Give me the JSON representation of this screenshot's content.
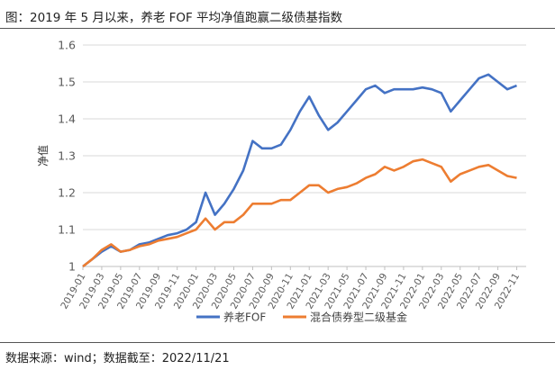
{
  "figure": {
    "title": "图：2019 年 5 月以来，养老 FOF 平均净值跑赢二级债基指数",
    "source": "数据来源：wind；数据截至：2022/11/21"
  },
  "chart_data": {
    "type": "line",
    "ylabel": "净值",
    "xlabel": "",
    "ylim": [
      1,
      1.6
    ],
    "y_ticks": [
      1,
      1.1,
      1.2,
      1.3,
      1.4,
      1.5,
      1.6
    ],
    "x_range": [
      "2019-01",
      "2022-12"
    ],
    "x_ticks": [
      "2019-01",
      "2019-03",
      "2019-05",
      "2019-07",
      "2019-09",
      "2019-11",
      "2020-01",
      "2020-03",
      "2020-05",
      "2020-07",
      "2020-09",
      "2020-11",
      "2021-01",
      "2021-03",
      "2021-05",
      "2021-07",
      "2021-09",
      "2021-11",
      "2022-01",
      "2022-03",
      "2022-05",
      "2022-07",
      "2022-09",
      "2022-11"
    ],
    "grid": "horizontal",
    "legend_position": "bottom",
    "series": [
      {
        "name": "养老FOF",
        "color": "#4472C4",
        "points": [
          [
            "2019-01",
            1.0
          ],
          [
            "2019-02",
            1.02
          ],
          [
            "2019-03",
            1.04
          ],
          [
            "2019-04",
            1.055
          ],
          [
            "2019-05",
            1.04
          ],
          [
            "2019-06",
            1.045
          ],
          [
            "2019-07",
            1.06
          ],
          [
            "2019-08",
            1.065
          ],
          [
            "2019-09",
            1.075
          ],
          [
            "2019-10",
            1.085
          ],
          [
            "2019-11",
            1.09
          ],
          [
            "2019-12",
            1.1
          ],
          [
            "2020-01",
            1.12
          ],
          [
            "2020-02",
            1.2
          ],
          [
            "2020-03",
            1.14
          ],
          [
            "2020-04",
            1.17
          ],
          [
            "2020-05",
            1.21
          ],
          [
            "2020-06",
            1.26
          ],
          [
            "2020-07",
            1.34
          ],
          [
            "2020-08",
            1.32
          ],
          [
            "2020-09",
            1.32
          ],
          [
            "2020-10",
            1.33
          ],
          [
            "2020-11",
            1.37
          ],
          [
            "2020-12",
            1.42
          ],
          [
            "2021-01",
            1.46
          ],
          [
            "2021-02",
            1.41
          ],
          [
            "2021-03",
            1.37
          ],
          [
            "2021-04",
            1.39
          ],
          [
            "2021-05",
            1.42
          ],
          [
            "2021-06",
            1.45
          ],
          [
            "2021-07",
            1.48
          ],
          [
            "2021-08",
            1.49
          ],
          [
            "2021-09",
            1.47
          ],
          [
            "2021-10",
            1.48
          ],
          [
            "2021-11",
            1.48
          ],
          [
            "2021-12",
            1.48
          ],
          [
            "2022-01",
            1.485
          ],
          [
            "2022-02",
            1.48
          ],
          [
            "2022-03",
            1.47
          ],
          [
            "2022-04",
            1.42
          ],
          [
            "2022-05",
            1.45
          ],
          [
            "2022-06",
            1.48
          ],
          [
            "2022-07",
            1.51
          ],
          [
            "2022-08",
            1.52
          ],
          [
            "2022-09",
            1.5
          ],
          [
            "2022-10",
            1.48
          ],
          [
            "2022-11",
            1.49
          ]
        ]
      },
      {
        "name": "混合债券型二级基金",
        "color": "#ED7D31",
        "points": [
          [
            "2019-01",
            1.0
          ],
          [
            "2019-02",
            1.02
          ],
          [
            "2019-03",
            1.045
          ],
          [
            "2019-04",
            1.06
          ],
          [
            "2019-05",
            1.04
          ],
          [
            "2019-06",
            1.045
          ],
          [
            "2019-07",
            1.055
          ],
          [
            "2019-08",
            1.06
          ],
          [
            "2019-09",
            1.07
          ],
          [
            "2019-10",
            1.075
          ],
          [
            "2019-11",
            1.08
          ],
          [
            "2019-12",
            1.09
          ],
          [
            "2020-01",
            1.1
          ],
          [
            "2020-02",
            1.13
          ],
          [
            "2020-03",
            1.1
          ],
          [
            "2020-04",
            1.12
          ],
          [
            "2020-05",
            1.12
          ],
          [
            "2020-06",
            1.14
          ],
          [
            "2020-07",
            1.17
          ],
          [
            "2020-08",
            1.17
          ],
          [
            "2020-09",
            1.17
          ],
          [
            "2020-10",
            1.18
          ],
          [
            "2020-11",
            1.18
          ],
          [
            "2020-12",
            1.2
          ],
          [
            "2021-01",
            1.22
          ],
          [
            "2021-02",
            1.22
          ],
          [
            "2021-03",
            1.2
          ],
          [
            "2021-04",
            1.21
          ],
          [
            "2021-05",
            1.215
          ],
          [
            "2021-06",
            1.225
          ],
          [
            "2021-07",
            1.24
          ],
          [
            "2021-08",
            1.25
          ],
          [
            "2021-09",
            1.27
          ],
          [
            "2021-10",
            1.26
          ],
          [
            "2021-11",
            1.27
          ],
          [
            "2021-12",
            1.285
          ],
          [
            "2022-01",
            1.29
          ],
          [
            "2022-02",
            1.28
          ],
          [
            "2022-03",
            1.27
          ],
          [
            "2022-04",
            1.23
          ],
          [
            "2022-05",
            1.25
          ],
          [
            "2022-06",
            1.26
          ],
          [
            "2022-07",
            1.27
          ],
          [
            "2022-08",
            1.275
          ],
          [
            "2022-09",
            1.26
          ],
          [
            "2022-10",
            1.245
          ],
          [
            "2022-11",
            1.24
          ]
        ]
      }
    ]
  }
}
